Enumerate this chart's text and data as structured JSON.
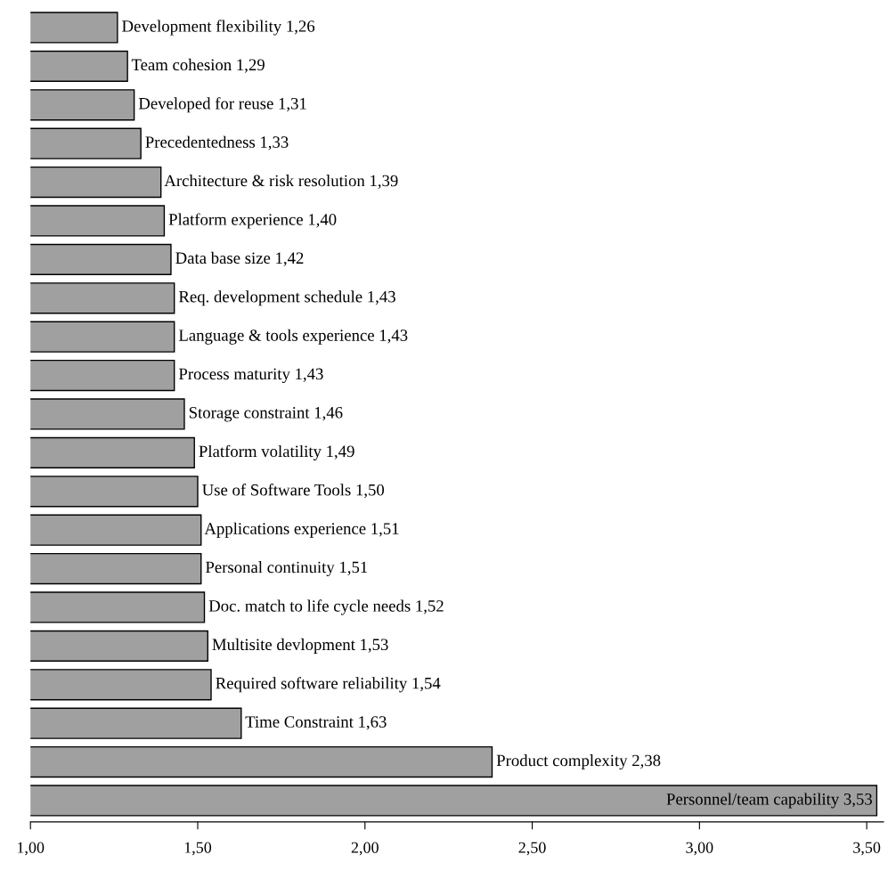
{
  "chart_data": {
    "type": "bar",
    "orientation": "horizontal",
    "categories": [
      "Development flexibility",
      "Team cohesion",
      "Developed for reuse",
      "Precedentedness",
      "Architecture & risk resolution",
      "Platform experience",
      "Data base size",
      "Req. development schedule",
      "Language & tools experience",
      "Process maturity",
      "Storage constraint",
      "Platform volatility",
      "Use of Software Tools",
      "Applications experience",
      "Personal continuity",
      "Doc. match to life cycle needs",
      "Multisite devlopment",
      "Required software reliability",
      "Time Constraint",
      "Product complexity",
      "Personnel/team capability"
    ],
    "values": [
      1.26,
      1.29,
      1.31,
      1.33,
      1.39,
      1.4,
      1.42,
      1.43,
      1.43,
      1.43,
      1.46,
      1.49,
      1.5,
      1.51,
      1.51,
      1.52,
      1.53,
      1.54,
      1.63,
      2.38,
      3.53
    ],
    "value_labels": [
      "1,26",
      "1,29",
      "1,31",
      "1,33",
      "1,39",
      "1,40",
      "1,42",
      "1,43",
      "1,43",
      "1,43",
      "1,46",
      "1,49",
      "1,50",
      "1,51",
      "1,51",
      "1,52",
      "1,53",
      "1,54",
      "1,63",
      "2,38",
      "3,53"
    ],
    "color": "#a0a0a0",
    "xlim": [
      1,
      3.55
    ],
    "xticks": [
      {
        "value": 1,
        "label": "1,00"
      },
      {
        "value": 1.5,
        "label": "1,50"
      },
      {
        "value": 2,
        "label": "2,00"
      },
      {
        "value": 2.5,
        "label": "2,50"
      },
      {
        "value": 3,
        "label": "3,00"
      },
      {
        "value": 3.5,
        "label": "3,50"
      }
    ],
    "grid": false,
    "legend": false
  }
}
